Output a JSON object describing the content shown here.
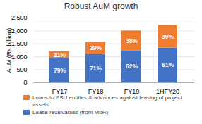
{
  "chart_data": {
    "type": "bar",
    "stacked": true,
    "title": "Robust AuM growth",
    "categories": [
      "FY17",
      "FY18",
      "FY19",
      "1HFY20"
    ],
    "series": [
      {
        "name": "Lease receivables (from MoR)",
        "color": "#4472C4",
        "values": [
          948,
          1100,
          1240,
          1345
        ],
        "shares": [
          79,
          71,
          62,
          61
        ],
        "share_labels": [
          "79%",
          "71%",
          "62%",
          "61%"
        ]
      },
      {
        "name": "Loans to PSU entities & advances against leasing of project assets",
        "color": "#ED7D31",
        "values": [
          252,
          450,
          760,
          860
        ],
        "shares": [
          21,
          29,
          38,
          39
        ],
        "share_labels": [
          "21%",
          "29%",
          "38%",
          "39%"
        ]
      }
    ],
    "ylabel": "AuM (Rs billion)",
    "ylim": [
      0,
      2500
    ],
    "yticks": [
      0,
      500,
      {
        "value": 1000,
        "label": "1,000"
      },
      {
        "value": 1500,
        "label": "1,500"
      },
      {
        "value": 2000,
        "label": "2,000"
      },
      {
        "value": 2500,
        "label": "2,500"
      }
    ],
    "grid": true,
    "legend": "bottom"
  }
}
